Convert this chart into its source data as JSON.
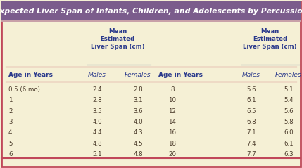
{
  "title": "Expected Liver Span of Infants, Children, and Adolescents by Percussion",
  "title_bg": "#7b5c8c",
  "title_color": "#ffffff",
  "table_bg": "#f5f0d5",
  "border_color_outer": "#c0485a",
  "border_color_inner": "#c8a0a8",
  "header_color": "#2b3a8c",
  "data_color": "#4a3a2a",
  "subheader_text": "Mean\nEstimated\nLiver Span (cm)",
  "col_headers_bold": [
    "Age in Years",
    "Age in Years"
  ],
  "col_headers_italic": [
    "Males",
    "Females",
    "Males",
    "Females"
  ],
  "left_data": [
    [
      "0.5 (6 mo)",
      "2.4",
      "2.8"
    ],
    [
      "1",
      "2.8",
      "3.1"
    ],
    [
      "2",
      "3.5",
      "3.6"
    ],
    [
      "3",
      "4.0",
      "4.0"
    ],
    [
      "4",
      "4.4",
      "4.3"
    ],
    [
      "5",
      "4.8",
      "4.5"
    ],
    [
      "6",
      "5.1",
      "4.8"
    ]
  ],
  "right_data": [
    [
      "8",
      "5.6",
      "5.1"
    ],
    [
      "10",
      "6.1",
      "5.4"
    ],
    [
      "12",
      "6.5",
      "5.6"
    ],
    [
      "14",
      "6.8",
      "5.8"
    ],
    [
      "16",
      "7.1",
      "6.0"
    ],
    [
      "18",
      "7.4",
      "6.1"
    ],
    [
      "20",
      "7.7",
      "6.3"
    ]
  ]
}
